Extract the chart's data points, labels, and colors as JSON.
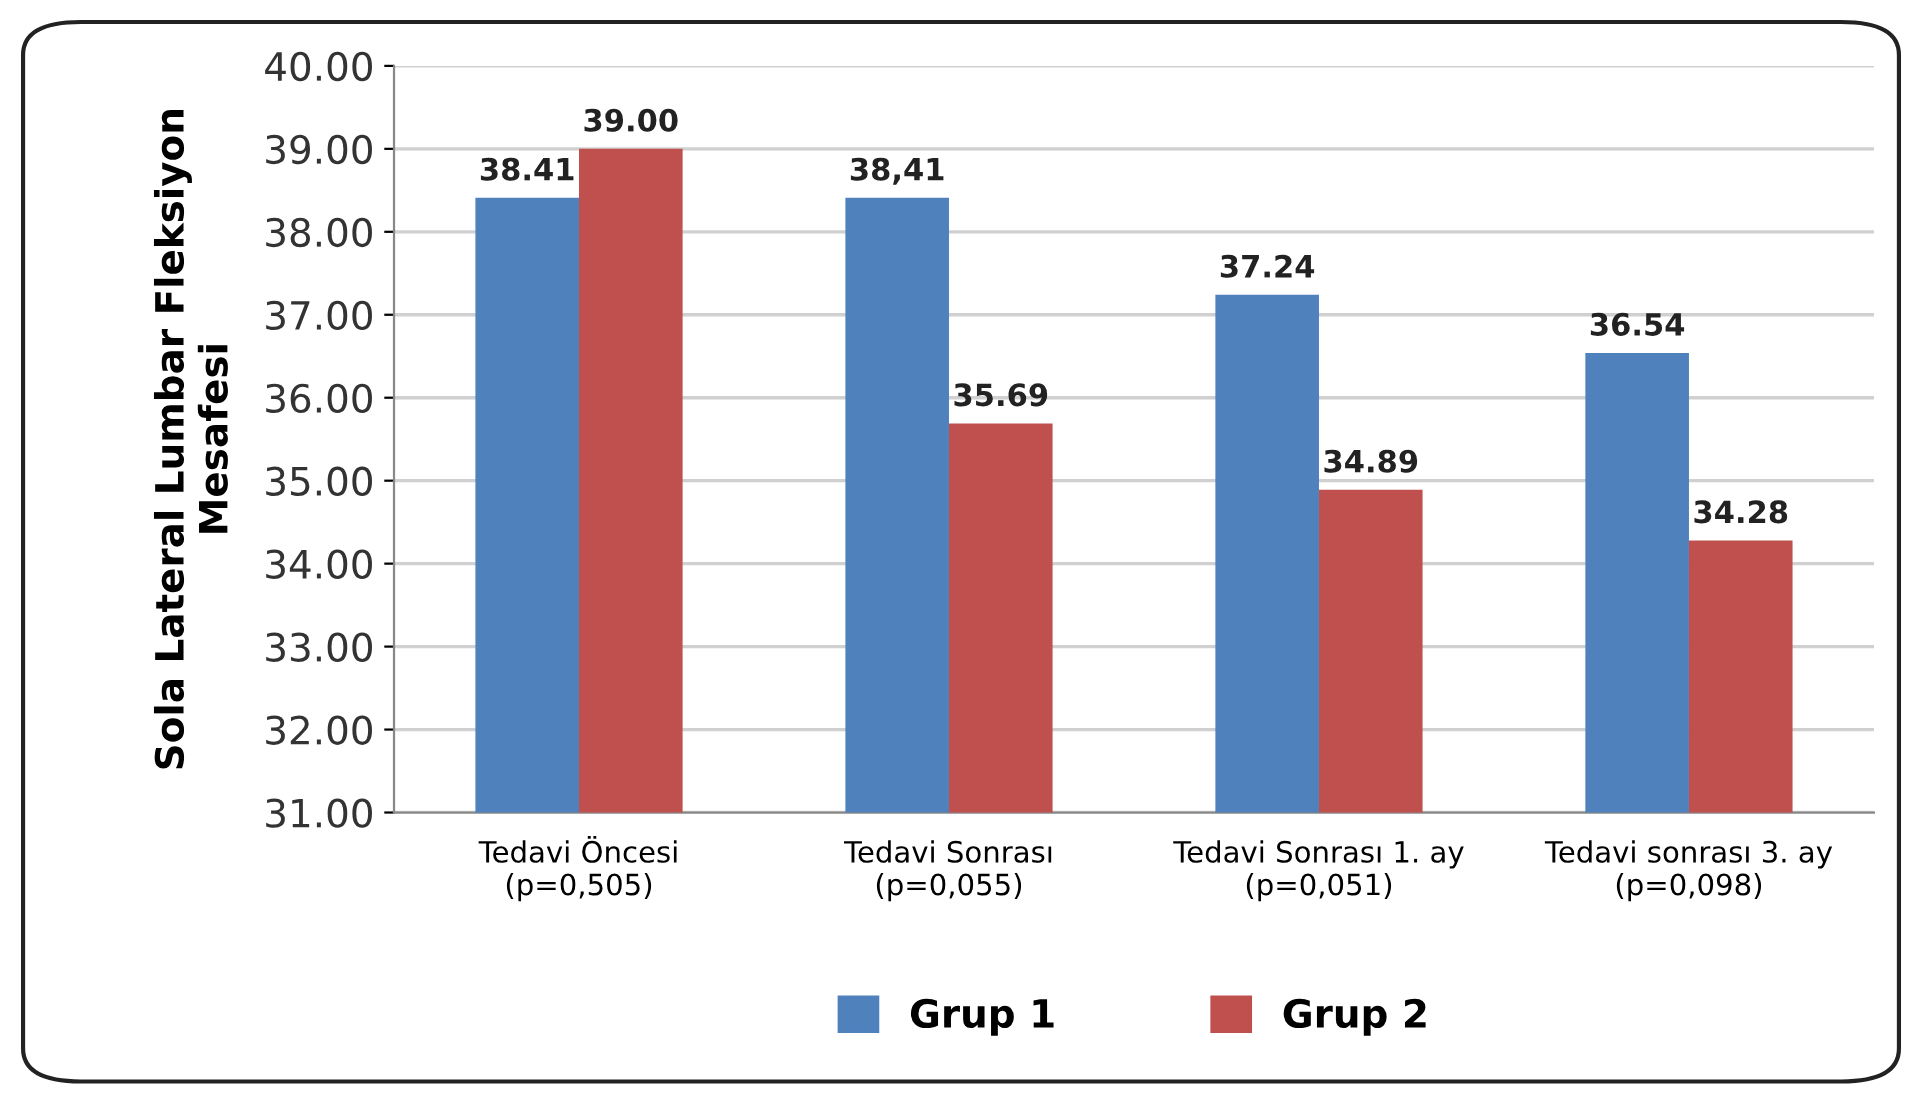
{
  "chart_data": {
    "type": "bar",
    "ylabel": "Sola Lateral Lumbar Fleksiyon\nMesafesi",
    "categories": [
      "Tedavi Öncesi\n(p=0,505)",
      "Tedavi Sonrası\n(p=0,055)",
      "Tedavi Sonrası 1. ay\n(p=0,051)",
      "Tedavi sonrası 3. ay\n(p=0,098)"
    ],
    "series": [
      {
        "name": "Grup 1",
        "color": "#4f81bd",
        "values": [
          38.41,
          38.41,
          37.24,
          36.54
        ],
        "value_labels": [
          "38.41",
          "38,41",
          "37.24",
          "36.54"
        ]
      },
      {
        "name": "Grup 2",
        "color": "#c0504d",
        "values": [
          39.0,
          35.69,
          34.89,
          34.28
        ],
        "value_labels": [
          "39.00",
          "35.69",
          "34.89",
          "34.28"
        ]
      }
    ],
    "ylim": [
      31,
      40
    ],
    "yticks": [
      {
        "value": 31,
        "label": "31.00"
      },
      {
        "value": 32,
        "label": "32.00"
      },
      {
        "value": 33,
        "label": "33.00"
      },
      {
        "value": 34,
        "label": "34.00"
      },
      {
        "value": 35,
        "label": "35.00"
      },
      {
        "value": 36,
        "label": "36.00"
      },
      {
        "value": 37,
        "label": "37.00"
      },
      {
        "value": 38,
        "label": "38.00"
      },
      {
        "value": 39,
        "label": "39.00"
      },
      {
        "value": 40,
        "label": "40.00"
      }
    ],
    "grid": "y",
    "legend": "bottom"
  }
}
